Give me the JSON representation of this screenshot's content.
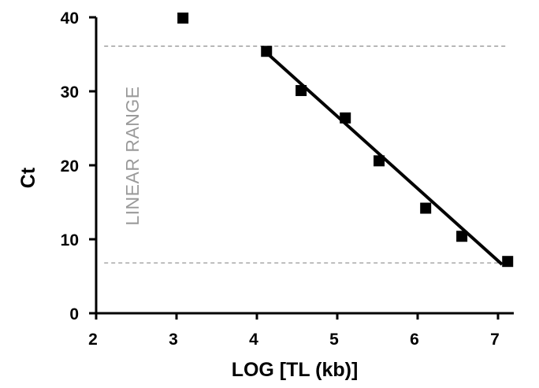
{
  "chart_data": {
    "type": "scatter",
    "title": "",
    "xlabel": "LOG [TL (kb)]",
    "ylabel": "Ct",
    "xlim": [
      2,
      7.5
    ],
    "ylim": [
      0,
      40
    ],
    "x_ticks": [
      2,
      3,
      4,
      5,
      6,
      7
    ],
    "y_ticks": [
      0,
      10,
      20,
      30,
      40
    ],
    "grid": false,
    "legend": "none",
    "series": [
      {
        "points": [
          {
            "x": 3.08,
            "y": 39.9
          },
          {
            "x": 4.12,
            "y": 35.4
          },
          {
            "x": 4.55,
            "y": 30.1
          },
          {
            "x": 5.1,
            "y": 26.4
          },
          {
            "x": 5.52,
            "y": 20.6
          },
          {
            "x": 6.1,
            "y": 14.2
          },
          {
            "x": 6.55,
            "y": 10.4
          },
          {
            "x": 7.12,
            "y": 7.0
          }
        ]
      }
    ],
    "fit_line": {
      "x": [
        4.08,
        7.05
      ],
      "y": [
        35.6,
        6.6
      ]
    },
    "reference_lines_y": [
      36.1,
      6.8
    ],
    "reference_lines_x_extent": [
      2.1,
      7.1
    ],
    "annotation": {
      "text": "LINEAR RANGE",
      "color": "#9a9a9a"
    },
    "colors": {
      "points": "#000000",
      "fit": "#000000",
      "reference": "#8c8c8c",
      "annotation": "#9a9a9a"
    }
  }
}
